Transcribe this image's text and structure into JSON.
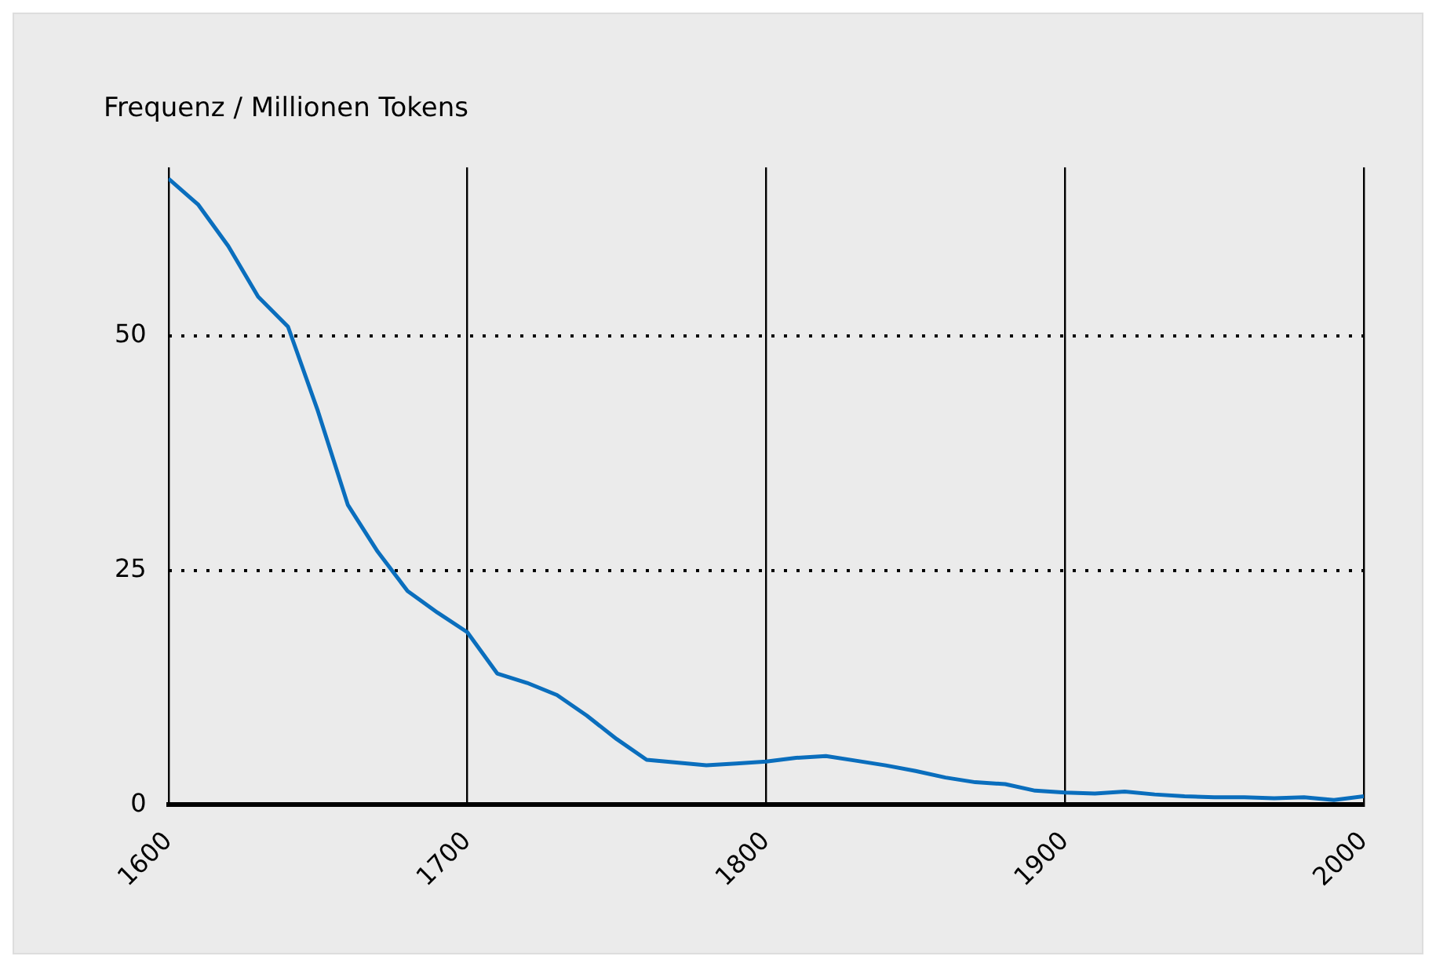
{
  "chart_data": {
    "type": "line",
    "ylabel": "Frequenz / Millionen Tokens",
    "x": [
      1600,
      1610,
      1620,
      1630,
      1640,
      1650,
      1660,
      1670,
      1680,
      1690,
      1700,
      1710,
      1720,
      1730,
      1740,
      1750,
      1760,
      1770,
      1780,
      1790,
      1800,
      1810,
      1820,
      1830,
      1840,
      1850,
      1860,
      1870,
      1880,
      1890,
      1900,
      1910,
      1920,
      1930,
      1940,
      1950,
      1960,
      1970,
      1980,
      1990,
      2000
    ],
    "series": [
      {
        "color": "#0a6ebd",
        "values": [
          66.8,
          64,
          59.6,
          54.2,
          51,
          42,
          32,
          27,
          22.8,
          20.5,
          18.4,
          14,
          13,
          11.7,
          9.5,
          7,
          4.8,
          4.5,
          4.2,
          4.4,
          4.6,
          5,
          5.2,
          4.7,
          4.2,
          3.6,
          2.9,
          2.4,
          2.2,
          1.5,
          1.3,
          1.2,
          1.4,
          1.1,
          0.9,
          0.8,
          0.8,
          0.7,
          0.8,
          0.5,
          0.9
        ]
      }
    ],
    "xlim": [
      1600,
      2000
    ],
    "xticks": [
      1600,
      1700,
      1800,
      1900,
      2000
    ],
    "ylim": [
      0,
      68
    ],
    "yticks": [
      0,
      25,
      50
    ],
    "grid": true,
    "legend": false,
    "marker": "none",
    "line_style": "solid"
  }
}
